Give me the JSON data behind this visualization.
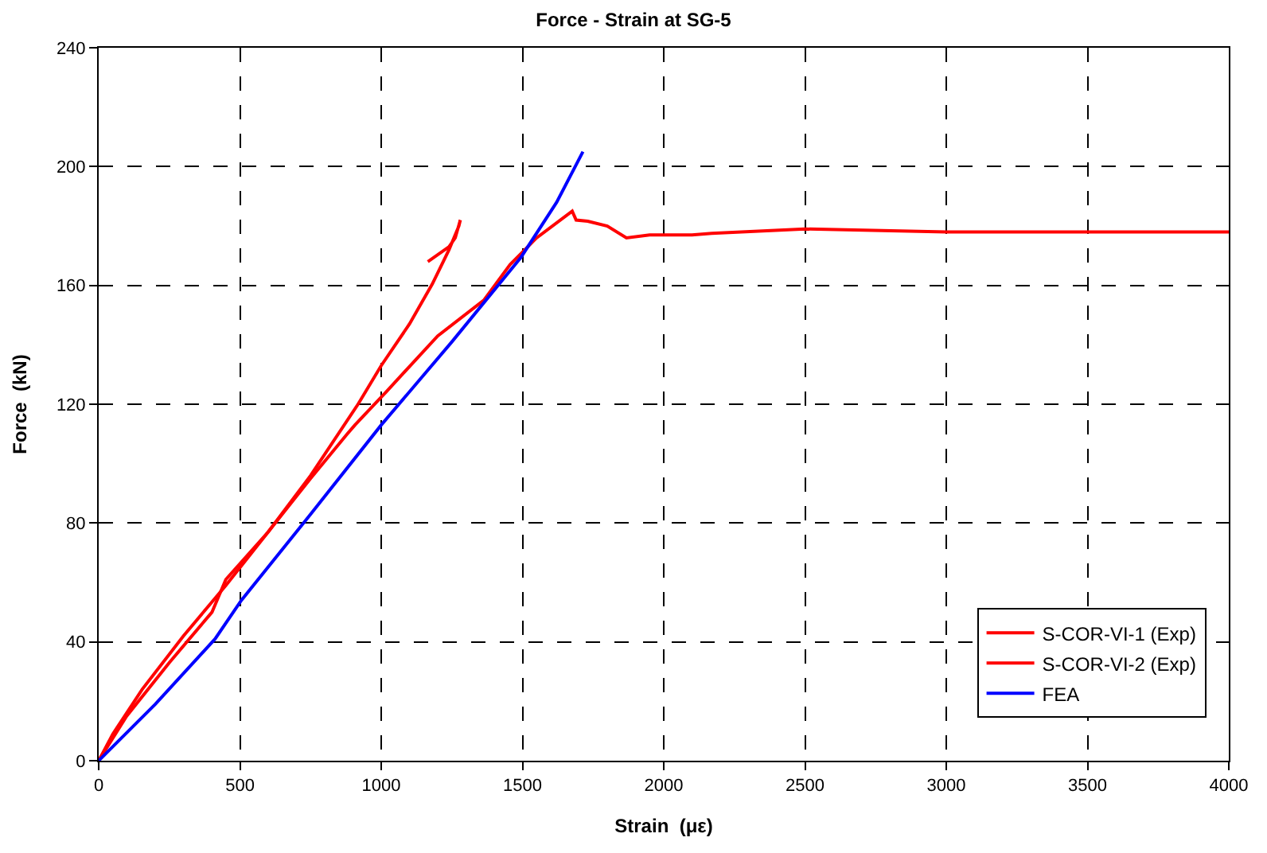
{
  "chart_data": {
    "type": "line",
    "title": "Force - Strain at SG-5",
    "xlabel": "Strain  (με)",
    "ylabel": "Force  (kN)",
    "xlim": [
      0,
      4000
    ],
    "xticks": [
      0,
      500,
      1000,
      1500,
      2000,
      2500,
      3000,
      3500,
      4000
    ],
    "ylim": [
      0,
      240
    ],
    "yticks": [
      0,
      40,
      80,
      120,
      160,
      200,
      240
    ],
    "grid": true,
    "legend": "bottom right",
    "marker": "none",
    "line_style": "solid",
    "series": [
      {
        "name": "S-COR-VI-1 (Exp)",
        "color": "#ff0000",
        "x": [
          0,
          50,
          154,
          300,
          450,
          600,
          750,
          918,
          1000,
          1100,
          1181,
          1240,
          1275,
          1280,
          1262,
          1240,
          1165
        ],
        "values": [
          0,
          9,
          24,
          42,
          59,
          77,
          96,
          120,
          133,
          147,
          160.5,
          172,
          180,
          182,
          176,
          173,
          168
        ]
      },
      {
        "name": "S-COR-VI-2 (Exp)",
        "color": "#ff0000",
        "x": [
          0,
          99,
          250,
          401,
          450,
          600,
          750,
          880,
          907,
          1016,
          1200,
          1363,
          1456,
          1550,
          1676,
          1690,
          1731,
          1800,
          1868,
          1950,
          2100,
          2170,
          2500,
          3000,
          3500,
          4000
        ],
        "values": [
          0,
          15,
          33,
          50,
          61,
          77,
          95,
          110,
          113,
          124,
          143,
          155,
          167,
          176,
          185,
          182,
          181.6,
          180,
          176,
          177,
          177,
          177.5,
          179,
          178,
          178,
          178
        ]
      },
      {
        "name": "FEA",
        "color": "#0000ff",
        "x": [
          0,
          200,
          412,
          505,
          750,
          1000,
          1250,
          1495,
          1621,
          1714
        ],
        "values": [
          0,
          19,
          41,
          54,
          83,
          113,
          141,
          169.5,
          188,
          205
        ]
      }
    ]
  }
}
